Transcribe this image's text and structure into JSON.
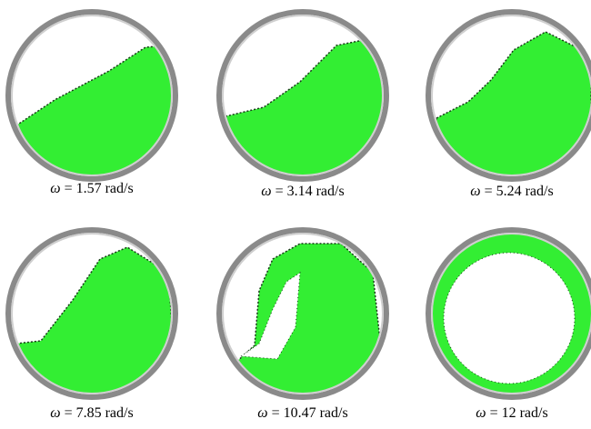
{
  "figure": {
    "panels": [
      {
        "caption": "= 1.57 rad/s",
        "symbol": "ω"
      },
      {
        "caption": "= 3.14 rad/s",
        "symbol": "ω"
      },
      {
        "caption": "= 5.24 rad/s",
        "symbol": "ω"
      },
      {
        "caption": "= 7.85 rad/s",
        "symbol": "ω"
      },
      {
        "caption": "= 10.47 rad/s",
        "symbol": "ω"
      },
      {
        "caption": "= 12 rad/s",
        "symbol": "ω"
      }
    ]
  },
  "colors": {
    "drum_ring": "#8a8a8a",
    "drum_ring_light": "#cfcfcf",
    "particle_green": "#33ee33",
    "particle_dark": "#1a3a1a"
  }
}
